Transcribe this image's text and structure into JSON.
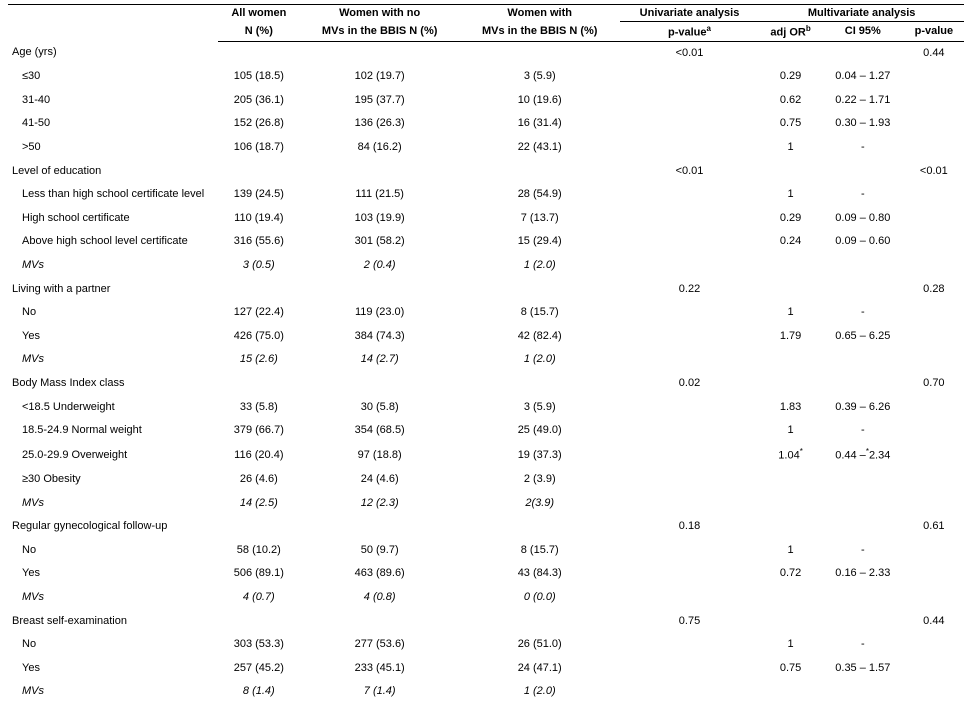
{
  "header": {
    "col_all": "All women",
    "col_all_sub": "N (%)",
    "col_nomv": "Women with no",
    "col_nomv_sub": "MVs in the BBIS N (%)",
    "col_mv": "Women with",
    "col_mv_sub": "MVs in the BBIS N (%)",
    "col_uni": "Univariate analysis",
    "col_uni_p": "p-value",
    "col_uni_p_sup": "a",
    "col_multi": "Multivariate analysis",
    "col_or": "adj OR",
    "col_or_sup": "b",
    "col_ci": "CI 95%",
    "col_p2": "p-value"
  },
  "rows": [
    {
      "label": "Age (yrs)",
      "all": "",
      "no": "",
      "yes": "",
      "p1": "<0.01",
      "or": "",
      "ci": "",
      "p2": "0.44",
      "cls": "label"
    },
    {
      "label": "≤30",
      "all": "105 (18.5)",
      "no": "102 (19.7)",
      "yes": "3 (5.9)",
      "p1": "",
      "or": "0.29",
      "ci": "0.04 – 1.27",
      "p2": "",
      "cls": "sublabel"
    },
    {
      "label": "31-40",
      "all": "205 (36.1)",
      "no": "195 (37.7)",
      "yes": "10 (19.6)",
      "p1": "",
      "or": "0.62",
      "ci": "0.22 – 1.71",
      "p2": "",
      "cls": "sublabel"
    },
    {
      "label": "41-50",
      "all": "152 (26.8)",
      "no": "136 (26.3)",
      "yes": "16 (31.4)",
      "p1": "",
      "or": "0.75",
      "ci": "0.30 – 1.93",
      "p2": "",
      "cls": "sublabel"
    },
    {
      "label": ">50",
      "all": "106 (18.7)",
      "no": "84 (16.2)",
      "yes": "22 (43.1)",
      "p1": "",
      "or": "1",
      "ci": "-",
      "p2": "",
      "cls": "sublabel"
    },
    {
      "label": "Level of education",
      "all": "",
      "no": "",
      "yes": "",
      "p1": "<0.01",
      "or": "",
      "ci": "",
      "p2": "<0.01",
      "cls": "label"
    },
    {
      "label": "Less than high school certificate level",
      "all": "139 (24.5)",
      "no": "111 (21.5)",
      "yes": "28 (54.9)",
      "p1": "",
      "or": "1",
      "ci": "-",
      "p2": "",
      "cls": "sublabel"
    },
    {
      "label": "High school certificate",
      "all": "110 (19.4)",
      "no": "103 (19.9)",
      "yes": "7 (13.7)",
      "p1": "",
      "or": "0.29",
      "ci": "0.09 – 0.80",
      "p2": "",
      "cls": "sublabel"
    },
    {
      "label": "Above high school level certificate",
      "all": "316 (55.6)",
      "no": "301 (58.2)",
      "yes": "15 (29.4)",
      "p1": "",
      "or": "0.24",
      "ci": "0.09 – 0.60",
      "p2": "",
      "cls": "sublabel"
    },
    {
      "label": "MVs",
      "all": "3 (0.5)",
      "no": "2 (0.4)",
      "yes": "1 (2.0)",
      "p1": "",
      "or": "",
      "ci": "",
      "p2": "",
      "cls": "sublabel italic"
    },
    {
      "label": "Living with a partner",
      "all": "",
      "no": "",
      "yes": "",
      "p1": "0.22",
      "or": "",
      "ci": "",
      "p2": "0.28",
      "cls": "label"
    },
    {
      "label": "No",
      "all": "127 (22.4)",
      "no": "119 (23.0)",
      "yes": "8 (15.7)",
      "p1": "",
      "or": "1",
      "ci": "-",
      "p2": "",
      "cls": "sublabel"
    },
    {
      "label": "Yes",
      "all": "426 (75.0)",
      "no": "384 (74.3)",
      "yes": "42 (82.4)",
      "p1": "",
      "or": "1.79",
      "ci": "0.65 – 6.25",
      "p2": "",
      "cls": "sublabel"
    },
    {
      "label": "MVs",
      "all": "15 (2.6)",
      "no": "14 (2.7)",
      "yes": "1 (2.0)",
      "p1": "",
      "or": "",
      "ci": "",
      "p2": "",
      "cls": "sublabel italic"
    },
    {
      "label": "Body Mass Index class",
      "all": "",
      "no": "",
      "yes": "",
      "p1": "0.02",
      "or": "",
      "ci": "",
      "p2": "0.70",
      "cls": "label"
    },
    {
      "label": "<18.5 Underweight",
      "all": "33 (5.8)",
      "no": "30 (5.8)",
      "yes": "3 (5.9)",
      "p1": "",
      "or": "1.83",
      "ci": "0.39 – 6.26",
      "p2": "",
      "cls": "sublabel"
    },
    {
      "label": "18.5-24.9 Normal weight",
      "all": "379 (66.7)",
      "no": "354 (68.5)",
      "yes": "25 (49.0)",
      "p1": "",
      "or": "1",
      "ci": "-",
      "p2": "",
      "cls": "sublabel"
    },
    {
      "label": "25.0-29.9 Overweight",
      "all": "116 (20.4)",
      "no": "97 (18.8)",
      "yes": "19 (37.3)",
      "p1": "",
      "or": "1.04<span class=\"sup\">*</span>",
      "ci": "0.44 –<span class=\"sup\">*</span>2.34",
      "p2": "",
      "cls": "sublabel"
    },
    {
      "label": "≥30 Obesity",
      "all": "26 (4.6)",
      "no": "24 (4.6)",
      "yes": "2 (3.9)",
      "p1": "",
      "or": "",
      "ci": "",
      "p2": "",
      "cls": "sublabel"
    },
    {
      "label": "MVs",
      "all": "14 (2.5)",
      "no": "12 (2.3)",
      "yes": "2(3.9)",
      "p1": "",
      "or": "",
      "ci": "",
      "p2": "",
      "cls": "sublabel italic"
    },
    {
      "label": "Regular gynecological follow-up",
      "all": "",
      "no": "",
      "yes": "",
      "p1": "0.18",
      "or": "",
      "ci": "",
      "p2": "0.61",
      "cls": "label"
    },
    {
      "label": "No",
      "all": "58 (10.2)",
      "no": "50 (9.7)",
      "yes": "8 (15.7)",
      "p1": "",
      "or": "1",
      "ci": "-",
      "p2": "",
      "cls": "sublabel"
    },
    {
      "label": "Yes",
      "all": "506 (89.1)",
      "no": "463 (89.6)",
      "yes": "43 (84.3)",
      "p1": "",
      "or": "0.72",
      "ci": "0.16 – 2.33",
      "p2": "",
      "cls": "sublabel"
    },
    {
      "label": "MVs",
      "all": "4 (0.7)",
      "no": "4 (0.8)",
      "yes": "0 (0.0)",
      "p1": "",
      "or": "",
      "ci": "",
      "p2": "",
      "cls": "sublabel italic"
    },
    {
      "label": "Breast self-examination",
      "all": "",
      "no": "",
      "yes": "",
      "p1": "0.75",
      "or": "",
      "ci": "",
      "p2": "0.44",
      "cls": "label"
    },
    {
      "label": "No",
      "all": "303 (53.3)",
      "no": "277 (53.6)",
      "yes": "26 (51.0)",
      "p1": "",
      "or": "1",
      "ci": "-",
      "p2": "",
      "cls": "sublabel"
    },
    {
      "label": "Yes",
      "all": "257 (45.2)",
      "no": "233 (45.1)",
      "yes": "24 (47.1)",
      "p1": "",
      "or": "0.75",
      "ci": "0.35 – 1.57",
      "p2": "",
      "cls": "sublabel"
    },
    {
      "label": "MVs",
      "all": "8 (1.4)",
      "no": "7 (1.4)",
      "yes": "1 (2.0)",
      "p1": "",
      "or": "",
      "ci": "",
      "p2": "",
      "cls": "sublabel italic"
    }
  ]
}
